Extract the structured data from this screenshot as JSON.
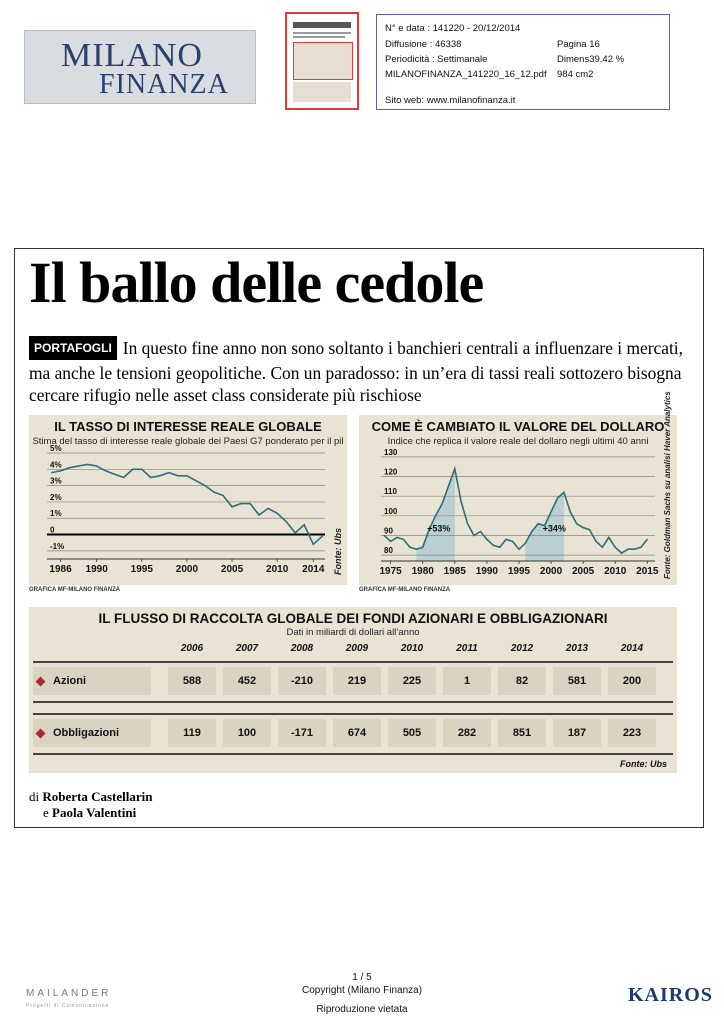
{
  "header": {
    "logo_line1": "MILANO",
    "logo_line2": "FINANZA",
    "meta": {
      "date": "N° e data : 141220 - 20/12/2014",
      "diffusione": "Diffusione : 46338",
      "pagina": "Pagina 16",
      "periodicita": "Periodicità : Settimanale",
      "dimens": "Dimens39.42 %",
      "file": "MILANOFINANZA_141220_16_12.pdf",
      "area": "984 cm2",
      "sito": "Sito web: www.milanofinanza.it"
    }
  },
  "article": {
    "headline": "Il ballo delle cedole",
    "kicker": "PORTAFOGLI",
    "lead": "In questo fine anno non sono soltanto i banchieri centrali a influenzare i mercati, ma anche le tensioni geopolitiche. Con un paradosso: in un’era di tassi reali sottozero bisogna cercare rifugio nelle asset class considerate più rischiose",
    "credit": "GRAFICA MF-MILANO FINANZA",
    "byline_prefix": "di",
    "author1": "Roberta Castellarin",
    "byline_and": "e",
    "author2": "Paola Valentini"
  },
  "chart_data": [
    {
      "type": "line",
      "title": "IL TASSO DI INTERESSE REALE GLOBALE",
      "subtitle": "Stima del tasso di interesse reale globale dei Paesi G7 ponderato per il pil",
      "source": "Fonte: Ubs",
      "ylim": [
        -1.5,
        5
      ],
      "yticks": [
        "5%",
        "4%",
        "3%",
        "2%",
        "1%",
        "0",
        "-1%"
      ],
      "ytick_values": [
        5,
        4,
        3,
        2,
        1,
        0,
        -1
      ],
      "xticks": [
        "1986",
        "1990",
        "1995",
        "2000",
        "2005",
        "2010",
        "2014"
      ],
      "xtick_values": [
        1986,
        1990,
        1995,
        2000,
        2005,
        2010,
        2014
      ],
      "xlim": [
        1984.5,
        2015.3
      ],
      "x": [
        1985,
        1986,
        1987,
        1988,
        1989,
        1990,
        1991,
        1992,
        1993,
        1994,
        1995,
        1996,
        1997,
        1998,
        1999,
        2000,
        2001,
        2002,
        2003,
        2004,
        2005,
        2006,
        2007,
        2008,
        2009,
        2010,
        2011,
        2012,
        2013,
        2014,
        2015
      ],
      "values": [
        3.8,
        3.9,
        4.1,
        4.2,
        4.3,
        4.2,
        3.9,
        3.7,
        3.5,
        4.0,
        4.0,
        3.5,
        3.6,
        3.8,
        3.6,
        3.6,
        3.3,
        3.0,
        2.6,
        2.4,
        1.7,
        1.9,
        1.9,
        1.2,
        1.6,
        1.3,
        0.8,
        0.1,
        0.6,
        -0.6,
        -0.1
      ]
    },
    {
      "type": "line",
      "title": "COME È CAMBIATO IL VALORE DEL DOLLARO",
      "subtitle": "Indice che replica il valore reale del dollaro negli ultimi 40 anni",
      "source": "Fonte: Goldman Sachs su analisi Haver Analytics",
      "ylim": [
        77,
        133
      ],
      "yticks": [
        "130",
        "120",
        "110",
        "100",
        "90",
        "80"
      ],
      "ytick_values": [
        130,
        120,
        110,
        100,
        90,
        80
      ],
      "xticks": [
        "1975",
        "1980",
        "1985",
        "1990",
        "1995",
        "2000",
        "2005",
        "2010",
        "2015"
      ],
      "xtick_values": [
        1975,
        1980,
        1985,
        1990,
        1995,
        2000,
        2005,
        2010,
        2015
      ],
      "xlim": [
        1973.5,
        2016.2
      ],
      "x": [
        1974,
        1975,
        1976,
        1977,
        1978,
        1979,
        1980,
        1981,
        1982,
        1983,
        1984,
        1985,
        1986,
        1987,
        1988,
        1989,
        1990,
        1991,
        1992,
        1993,
        1994,
        1995,
        1996,
        1997,
        1998,
        1999,
        2000,
        2001,
        2002,
        2003,
        2004,
        2005,
        2006,
        2007,
        2008,
        2009,
        2010,
        2011,
        2012,
        2013,
        2014,
        2015
      ],
      "values": [
        90,
        87,
        89,
        88,
        84,
        83,
        84,
        93,
        100,
        106,
        115,
        124,
        107,
        96,
        90,
        92,
        88,
        85,
        84,
        88,
        87,
        83,
        86,
        92,
        96,
        95,
        102,
        109,
        112,
        102,
        96,
        94,
        93,
        87,
        84,
        89,
        84,
        81,
        83,
        83,
        84,
        88
      ],
      "annotations": [
        {
          "label": "+53%",
          "x": 1982.5,
          "y": 92
        },
        {
          "label": "+34%",
          "x": 2000.5,
          "y": 92
        }
      ],
      "shaded": [
        [
          1979,
          1985
        ],
        [
          1995.5,
          2002
        ]
      ]
    },
    {
      "type": "table",
      "title": "IL FLUSSO DI RACCOLTA GLOBALE DEI FONDI AZIONARI E OBBLIGAZIONARI",
      "subtitle": "Dati in miliardi di dollari all’anno",
      "source": "Fonte: Ubs",
      "columns": [
        "2006",
        "2007",
        "2008",
        "2009",
        "2010",
        "2011",
        "2012",
        "2013",
        "2014"
      ],
      "rows": [
        {
          "label": "Azioni",
          "values": [
            "588",
            "452",
            "-210",
            "219",
            "225",
            "1",
            "82",
            "581",
            "200"
          ]
        },
        {
          "label": "Obbligazioni",
          "values": [
            "119",
            "100",
            "-171",
            "674",
            "505",
            "282",
            "851",
            "187",
            "223"
          ]
        }
      ]
    }
  ],
  "footer": {
    "page": "1 / 5",
    "copyright": "Copyright (Milano Finanza)",
    "riproduzione": "Riproduzione vietata",
    "mailander": "MAILANDER",
    "mailander_sub": "Progetti di Comunicazione",
    "kairos": "KAIROS"
  },
  "colors": {
    "panel": "#e9e3d3",
    "accent": "#b3262d",
    "shade": "#b9cfd1"
  }
}
